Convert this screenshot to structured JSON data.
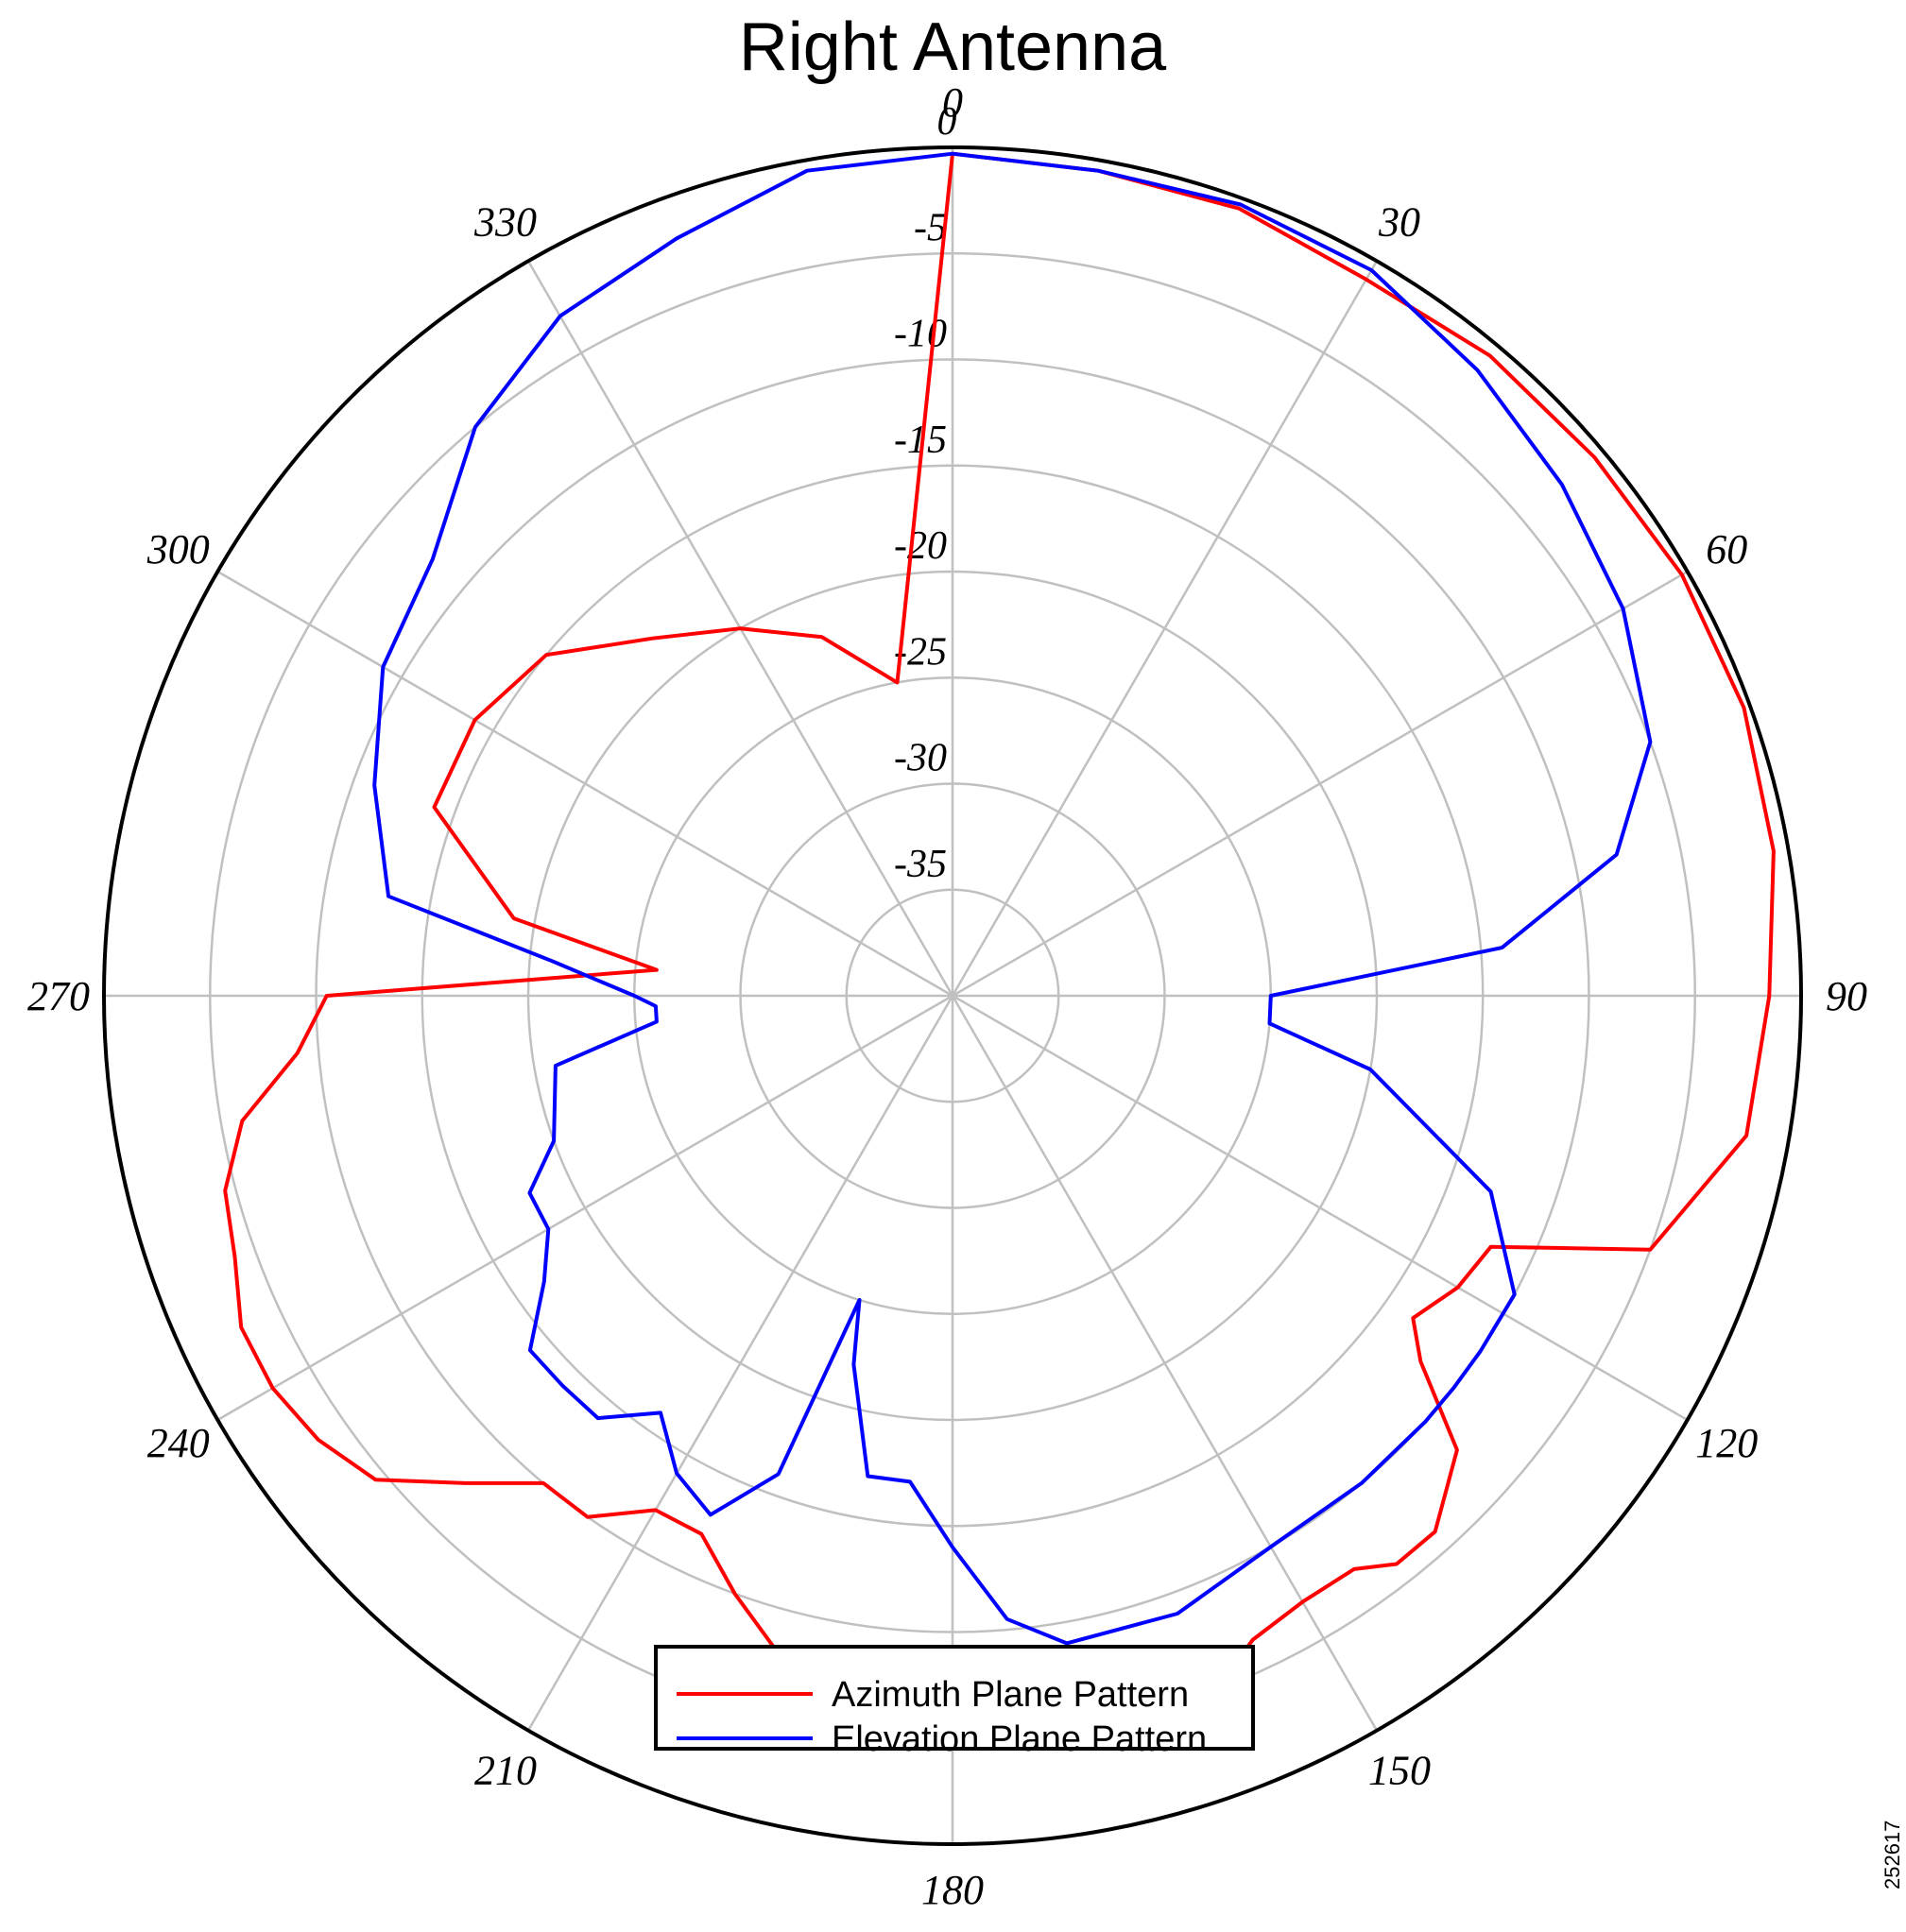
{
  "chart_data": {
    "type": "line",
    "subtype": "polar",
    "title": "Right Antenna",
    "figure_id": "252617",
    "angle_ticks": [
      "0",
      "30",
      "60",
      "90",
      "120",
      "150",
      "180",
      "210",
      "240",
      "270",
      "300",
      "330"
    ],
    "radial_ticks": [
      "-5",
      "-10",
      "-15",
      "-20",
      "-25",
      "-30",
      "-35"
    ],
    "rlim": [
      -40,
      0
    ],
    "theta_zero": "top",
    "theta_direction": "clockwise",
    "grid": true,
    "legend_position": "bottom-center",
    "series": [
      {
        "name": "Azimuth Plane Pattern",
        "color": "#ff0000",
        "theta": [
          0,
          10,
          20,
          30,
          40,
          50,
          60,
          70,
          80,
          90,
          100,
          110,
          115,
          120,
          125,
          128,
          132,
          138,
          142,
          145,
          150,
          155,
          160,
          165,
          170,
          175,
          180,
          185,
          190,
          195,
          200,
          205,
          210,
          215,
          220,
          225,
          230,
          235,
          240,
          245,
          250,
          255,
          260,
          265,
          270,
          275,
          280,
          290,
          300,
          310,
          320,
          330,
          340,
          350,
          360
        ],
        "values": [
          -0.3,
          -0.5,
          -0.5,
          -1.0,
          -0.6,
          -0.5,
          -0.3,
          -0.3,
          -0.7,
          -1.5,
          -2.0,
          -5.0,
          -12.0,
          -12.5,
          -13.5,
          -12.0,
          -8.0,
          -6.0,
          -6.0,
          -7.0,
          -7.0,
          -6.5,
          -4.7,
          -4.7,
          -7.0,
          -7.5,
          -7.0,
          -5.0,
          -6.0,
          -8.0,
          -10.0,
          -12.0,
          -12.0,
          -10.0,
          -10.0,
          -7.5,
          -4.5,
          -3.5,
          -3.0,
          -3.0,
          -4.0,
          -4.5,
          -6.0,
          -9.0,
          -10.5,
          -26.0,
          -19.0,
          -14.0,
          -14.0,
          -15.0,
          -18.0,
          -20.0,
          -22.0,
          -25.0,
          -0.3
        ]
      },
      {
        "name": "Elevation Plane Pattern",
        "color": "#0000ff",
        "theta": [
          0,
          10,
          20,
          30,
          40,
          50,
          60,
          70,
          78,
          85,
          90,
          95,
          100,
          110,
          118,
          124,
          128,
          132,
          140,
          150,
          160,
          170,
          175,
          180,
          185,
          190,
          195,
          197,
          200,
          205,
          210,
          215,
          220,
          225,
          230,
          235,
          240,
          245,
          250,
          260,
          265,
          268,
          270,
          275,
          280,
          290,
          300,
          310,
          320,
          330,
          340,
          350,
          360
        ],
        "values": [
          -0.3,
          -0.5,
          -0.3,
          -0.5,
          -1.5,
          -2.5,
          -3.5,
          -5.0,
          -8.0,
          -14.0,
          -25.0,
          -25.0,
          -20.0,
          -13.0,
          -10.0,
          -10.0,
          -10.0,
          -10.0,
          -10.0,
          -10.0,
          -9.0,
          -9.0,
          -10.5,
          -14.0,
          -17.0,
          -17.0,
          -22.0,
          -25.0,
          -16.0,
          -13.0,
          -14.0,
          -16.0,
          -14.0,
          -14.0,
          -14.0,
          -16.5,
          -18.0,
          -18.0,
          -20.0,
          -21.0,
          -26.0,
          -26.0,
          -25.0,
          -21.0,
          -13.0,
          -11.0,
          -9.0,
          -8.0,
          -5.0,
          -3.0,
          -2.0,
          -0.5,
          -0.3
        ]
      }
    ]
  }
}
